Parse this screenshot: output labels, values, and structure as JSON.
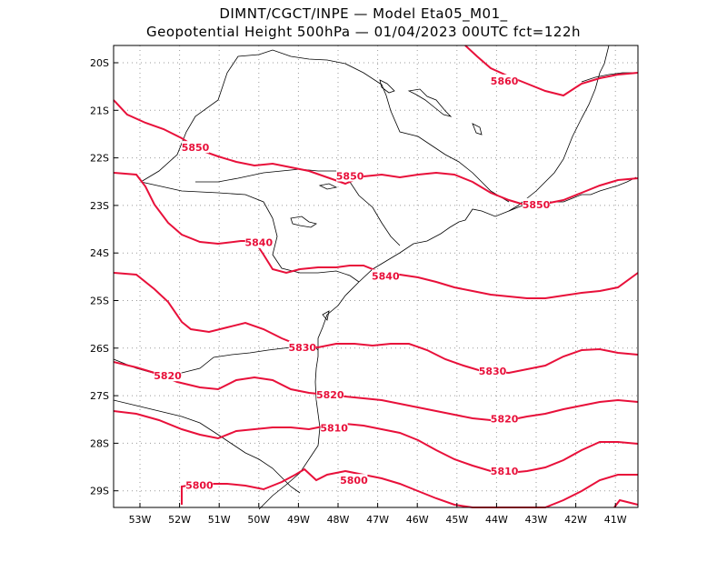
{
  "title": {
    "line1": "DIMNT/CGCT/INPE  —   Model Eta05_M01_",
    "line2": "Geopotential Height 500hPa  —   01/04/2023 00UTC fct=122h"
  },
  "axes": {
    "lat_labels": [
      "20S",
      "21S",
      "22S",
      "23S",
      "24S",
      "25S",
      "26S",
      "27S",
      "28S",
      "29S"
    ],
    "lon_labels": [
      "53W",
      "52W",
      "51W",
      "50W",
      "49W",
      "48W",
      "47W",
      "46W",
      "45W",
      "44W",
      "43W",
      "42W",
      "41W"
    ]
  },
  "contour_labels": [
    {
      "text": "5860",
      "lon": -43.8,
      "lat": -20.4
    },
    {
      "text": "5850",
      "lon": -51.6,
      "lat": -21.8
    },
    {
      "text": "5850",
      "lon": -47.7,
      "lat": -22.4
    },
    {
      "text": "5850",
      "lon": -43.0,
      "lat": -23.0
    },
    {
      "text": "5840",
      "lon": -50.0,
      "lat": -23.8
    },
    {
      "text": "5840",
      "lon": -46.8,
      "lat": -24.5
    },
    {
      "text": "5830",
      "lon": -48.9,
      "lat": -26.0
    },
    {
      "text": "5830",
      "lon": -44.1,
      "lat": -26.5
    },
    {
      "text": "5820",
      "lon": -52.3,
      "lat": -26.6
    },
    {
      "text": "5820",
      "lon": -48.2,
      "lat": -27.0
    },
    {
      "text": "5820",
      "lon": -43.8,
      "lat": -27.5
    },
    {
      "text": "5810",
      "lon": -48.1,
      "lat": -27.7
    },
    {
      "text": "5810",
      "lon": -43.8,
      "lat": -28.6
    },
    {
      "text": "5800",
      "lon": -51.5,
      "lat": -28.9
    },
    {
      "text": "5800",
      "lon": -47.6,
      "lat": -28.8
    }
  ],
  "colors": {
    "contour": "#e8103a",
    "border": "#000000",
    "grid": "#999999"
  }
}
